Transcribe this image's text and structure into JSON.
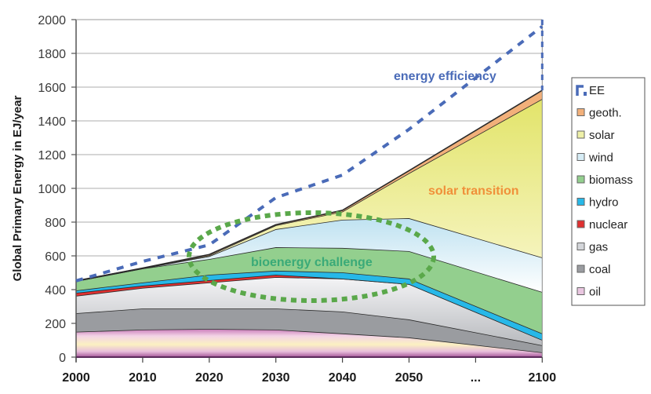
{
  "chart_data": {
    "type": "area",
    "title": "",
    "xlabel": "",
    "ylabel": "Global Primary Energy in EJ/year",
    "ylim": [
      0,
      2000
    ],
    "yticks": [
      0,
      200,
      400,
      600,
      800,
      1000,
      1200,
      1400,
      1600,
      1800,
      2000
    ],
    "x_tick_labels": [
      "2000",
      "2010",
      "2020",
      "2030",
      "2040",
      "2050",
      "...",
      "2100"
    ],
    "x_positions": [
      0,
      1,
      2,
      3,
      4,
      5,
      7
    ],
    "years": [
      2000,
      2010,
      2020,
      2030,
      2040,
      2050,
      2100
    ],
    "grid": true,
    "stacked": true,
    "series": [
      {
        "name": "oil",
        "color": "#e9c6e0",
        "values": [
          150,
          163,
          167,
          163,
          140,
          116,
          28
        ]
      },
      {
        "name": "coal",
        "color": "#9a9ca0",
        "values": [
          110,
          125,
          121,
          125,
          130,
          107,
          42
        ]
      },
      {
        "name": "gas",
        "color": "#d4d6da",
        "values": [
          103,
          122,
          154,
          186,
          195,
          210,
          32
        ]
      },
      {
        "name": "nuclear",
        "color": "#e03030",
        "values": [
          18,
          13,
          14,
          14,
          0,
          0,
          0
        ]
      },
      {
        "name": "hydro",
        "color": "#27b8e8",
        "values": [
          14,
          19,
          32,
          24,
          37,
          32,
          38
        ]
      },
      {
        "name": "biomass",
        "color": "#93cf8e",
        "values": [
          55,
          83,
          93,
          139,
          145,
          163,
          246
        ]
      },
      {
        "name": "wind",
        "color": "#d6ecf5",
        "values": [
          1,
          1,
          17,
          107,
          167,
          195,
          204
        ]
      },
      {
        "name": "solar",
        "color": "#eef0a8",
        "values": [
          0,
          0,
          5,
          23,
          48,
          267,
          940
        ]
      },
      {
        "name": "geoth.",
        "color": "#f2b07a",
        "values": [
          1,
          2,
          5,
          4,
          8,
          15,
          51
        ]
      }
    ],
    "ee_line": {
      "name": "EE",
      "color": "#4a6bb8",
      "values": [
        452,
        567,
        665,
        945,
        1079,
        1350,
        1960
      ]
    },
    "legend": {
      "placement": "right",
      "entries": [
        "EE",
        "geoth.",
        "solar",
        "wind",
        "biomass",
        "hydro",
        "nuclear",
        "gas",
        "coal",
        "oil"
      ]
    },
    "annotations": [
      {
        "text": "energy efficiency",
        "color": "#4a6bb8"
      },
      {
        "text": "solar transition",
        "color": "#f0903a"
      },
      {
        "text": "bioenergy challenge",
        "color": "#3aaa78"
      }
    ]
  }
}
